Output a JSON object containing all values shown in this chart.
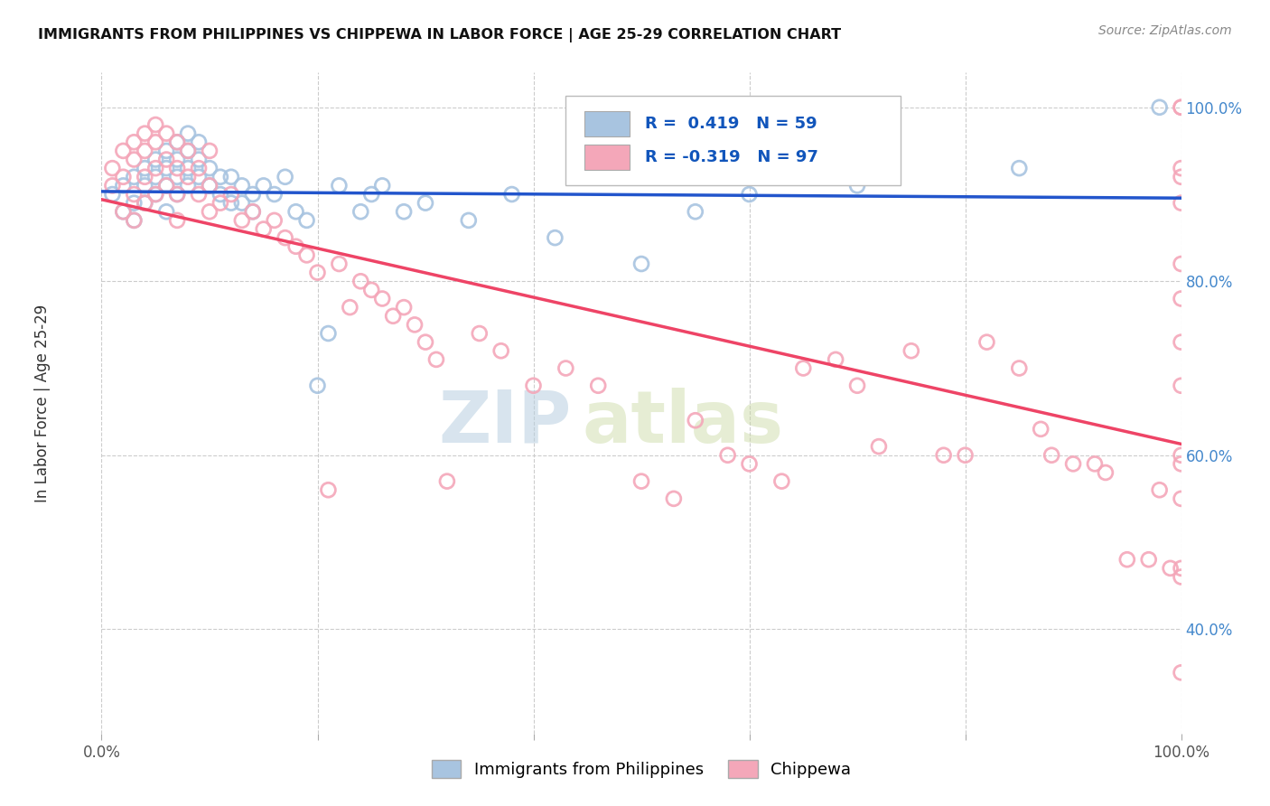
{
  "title": "IMMIGRANTS FROM PHILIPPINES VS CHIPPEWA IN LABOR FORCE | AGE 25-29 CORRELATION CHART",
  "source": "Source: ZipAtlas.com",
  "ylabel": "In Labor Force | Age 25-29",
  "blue_color": "#a8c4e0",
  "pink_color": "#f4a7b9",
  "blue_line_color": "#2255cc",
  "pink_line_color": "#ee4466",
  "legend_text_color": "#1155bb",
  "watermark_zip": "ZIP",
  "watermark_atlas": "atlas",
  "blue_R": 0.419,
  "blue_N": 59,
  "pink_R": -0.319,
  "pink_N": 97,
  "blue_scatter_x": [
    0.01,
    0.02,
    0.02,
    0.03,
    0.03,
    0.03,
    0.04,
    0.04,
    0.04,
    0.05,
    0.05,
    0.05,
    0.06,
    0.06,
    0.06,
    0.06,
    0.07,
    0.07,
    0.07,
    0.07,
    0.08,
    0.08,
    0.08,
    0.08,
    0.09,
    0.09,
    0.09,
    0.1,
    0.1,
    0.11,
    0.11,
    0.12,
    0.12,
    0.13,
    0.13,
    0.14,
    0.14,
    0.15,
    0.16,
    0.17,
    0.18,
    0.19,
    0.2,
    0.21,
    0.22,
    0.24,
    0.25,
    0.26,
    0.28,
    0.3,
    0.34,
    0.38,
    0.42,
    0.5,
    0.55,
    0.6,
    0.7,
    0.85,
    0.98
  ],
  "blue_scatter_y": [
    0.9,
    0.91,
    0.88,
    0.92,
    0.89,
    0.87,
    0.93,
    0.91,
    0.89,
    0.94,
    0.92,
    0.9,
    0.95,
    0.93,
    0.91,
    0.88,
    0.96,
    0.94,
    0.92,
    0.9,
    0.97,
    0.95,
    0.93,
    0.91,
    0.96,
    0.94,
    0.92,
    0.93,
    0.91,
    0.92,
    0.9,
    0.89,
    0.92,
    0.91,
    0.89,
    0.9,
    0.88,
    0.91,
    0.9,
    0.92,
    0.88,
    0.87,
    0.68,
    0.74,
    0.91,
    0.88,
    0.9,
    0.91,
    0.88,
    0.89,
    0.87,
    0.9,
    0.85,
    0.82,
    0.88,
    0.9,
    0.91,
    0.93,
    1.0
  ],
  "pink_scatter_x": [
    0.01,
    0.01,
    0.02,
    0.02,
    0.02,
    0.03,
    0.03,
    0.03,
    0.03,
    0.04,
    0.04,
    0.04,
    0.04,
    0.05,
    0.05,
    0.05,
    0.05,
    0.06,
    0.06,
    0.06,
    0.07,
    0.07,
    0.07,
    0.07,
    0.08,
    0.08,
    0.09,
    0.09,
    0.1,
    0.1,
    0.1,
    0.11,
    0.12,
    0.13,
    0.14,
    0.15,
    0.16,
    0.17,
    0.18,
    0.19,
    0.2,
    0.21,
    0.22,
    0.23,
    0.24,
    0.25,
    0.26,
    0.27,
    0.28,
    0.29,
    0.3,
    0.31,
    0.32,
    0.35,
    0.37,
    0.4,
    0.43,
    0.46,
    0.5,
    0.53,
    0.55,
    0.58,
    0.6,
    0.63,
    0.65,
    0.68,
    0.7,
    0.72,
    0.75,
    0.78,
    0.8,
    0.82,
    0.85,
    0.87,
    0.88,
    0.9,
    0.92,
    0.93,
    0.95,
    0.97,
    0.98,
    0.99,
    1.0,
    1.0,
    1.0,
    1.0,
    1.0,
    1.0,
    1.0,
    1.0,
    1.0,
    1.0,
    1.0,
    1.0,
    1.0,
    1.0,
    1.0
  ],
  "pink_scatter_y": [
    0.93,
    0.91,
    0.95,
    0.92,
    0.88,
    0.96,
    0.94,
    0.9,
    0.87,
    0.97,
    0.95,
    0.92,
    0.89,
    0.98,
    0.96,
    0.93,
    0.9,
    0.97,
    0.94,
    0.91,
    0.96,
    0.93,
    0.9,
    0.87,
    0.95,
    0.92,
    0.93,
    0.9,
    0.95,
    0.91,
    0.88,
    0.89,
    0.9,
    0.87,
    0.88,
    0.86,
    0.87,
    0.85,
    0.84,
    0.83,
    0.81,
    0.56,
    0.82,
    0.77,
    0.8,
    0.79,
    0.78,
    0.76,
    0.77,
    0.75,
    0.73,
    0.71,
    0.57,
    0.74,
    0.72,
    0.68,
    0.7,
    0.68,
    0.57,
    0.55,
    0.64,
    0.6,
    0.59,
    0.57,
    0.7,
    0.71,
    0.68,
    0.61,
    0.72,
    0.6,
    0.6,
    0.73,
    0.7,
    0.63,
    0.6,
    0.59,
    0.59,
    0.58,
    0.48,
    0.48,
    0.56,
    0.47,
    1.0,
    1.0,
    0.93,
    0.92,
    0.89,
    0.82,
    0.78,
    0.73,
    0.68,
    0.6,
    0.59,
    0.55,
    0.47,
    0.46,
    0.35
  ]
}
